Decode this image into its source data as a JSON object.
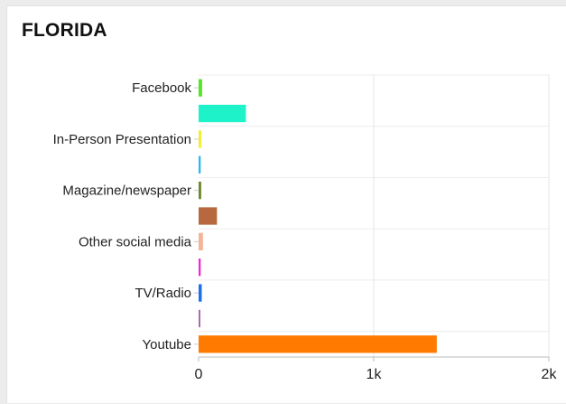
{
  "card": {
    "title": "FLORIDA"
  },
  "chart_data": {
    "type": "bar",
    "orientation": "horizontal",
    "title": "FLORIDA",
    "categories": [
      "Facebook",
      "",
      "In-Person Presentation",
      "",
      "Magazine/newspaper",
      "",
      "Other social media",
      "",
      "TV/Radio",
      "",
      "Youtube"
    ],
    "values": [
      20,
      270,
      15,
      12,
      15,
      105,
      25,
      12,
      18,
      5,
      1360
    ],
    "colors": [
      "#53e51f",
      "#1ef2c8",
      "#f2ee2a",
      "#2bb7f0",
      "#6b8a2e",
      "#b8683f",
      "#f2b59a",
      "#f027d3",
      "#1f6fe8",
      "#a86bb0",
      "#ff7a00"
    ],
    "xticks": [
      "0",
      "1k",
      "2k"
    ],
    "xtick_values": [
      0,
      1000,
      2000
    ],
    "xlim": [
      0,
      2000
    ],
    "grid": true,
    "xlabel": "",
    "ylabel": ""
  }
}
